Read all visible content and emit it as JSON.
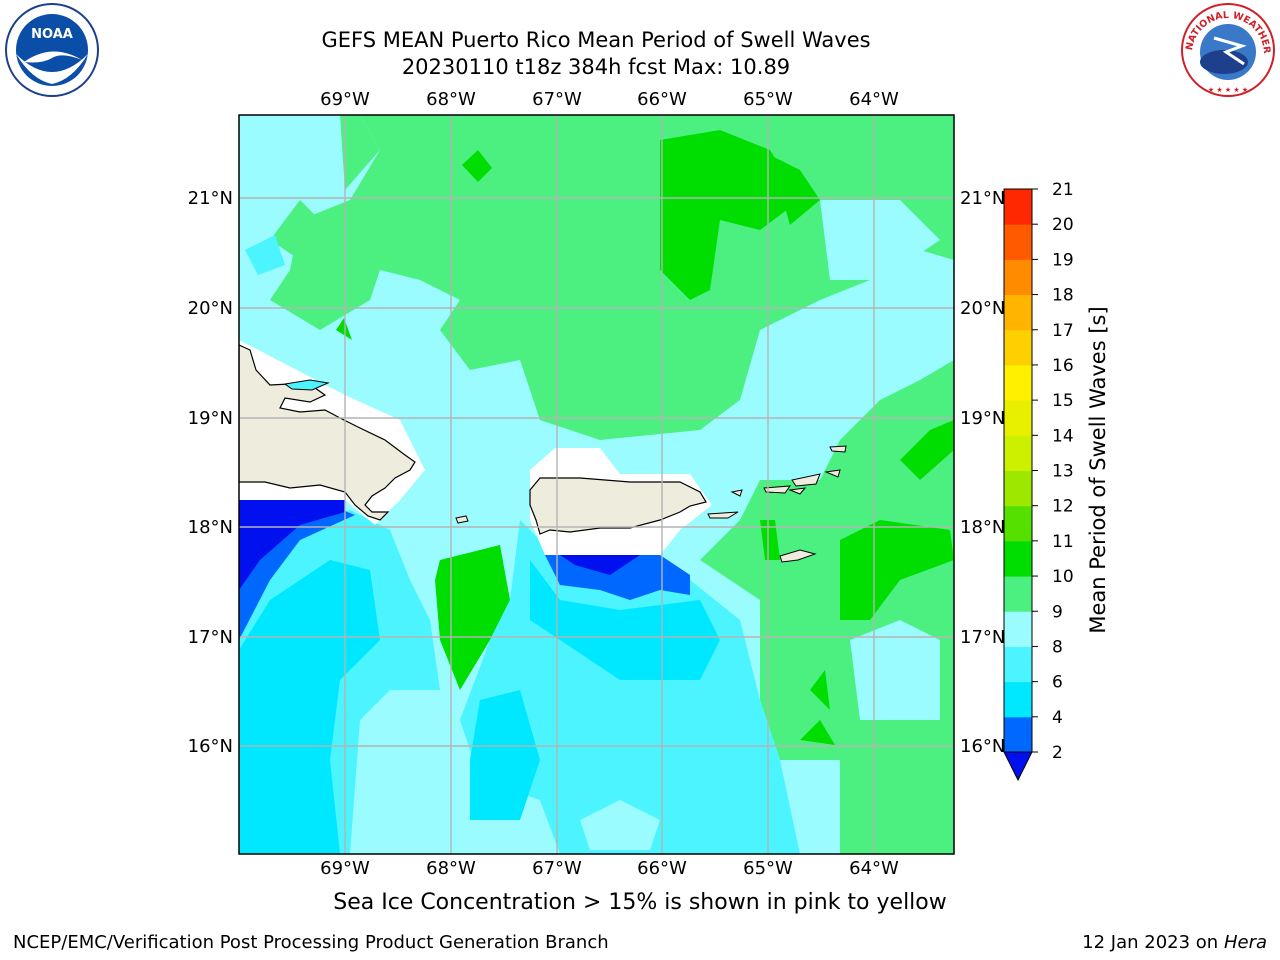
{
  "title": {
    "line1": "GEFS MEAN Puerto Rico Mean Period of Swell Waves",
    "line2": "20230110 t18z 384h fcst   Max: 10.89"
  },
  "map": {
    "lon_labels": [
      "69°W",
      "68°W",
      "67°W",
      "66°W",
      "65°W",
      "64°W"
    ],
    "lat_labels": [
      "21°N",
      "20°N",
      "19°N",
      "18°N",
      "17°N",
      "16°N"
    ]
  },
  "colorbar": {
    "title": "Mean Period of Swell Waves [s]",
    "levels": [
      2,
      4,
      6,
      8,
      9,
      10,
      11,
      12,
      13,
      14,
      15,
      16,
      17,
      18,
      19,
      20,
      21
    ],
    "tick_labels": [
      "2",
      "4",
      "6",
      "8",
      "9",
      "10",
      "11",
      "12",
      "13",
      "14",
      "15",
      "16",
      "17",
      "18",
      "19",
      "20",
      "21"
    ],
    "colors": [
      "#0068ff",
      "#00e8ff",
      "#4cf4ff",
      "#9afcff",
      "#4cf080",
      "#00dd00",
      "#55e000",
      "#9ee800",
      "#ccf000",
      "#e8f000",
      "#fff000",
      "#ffd000",
      "#ffb400",
      "#ff8c00",
      "#ff5a00",
      "#ff2800"
    ],
    "under_color": "#0010ee"
  },
  "caption": "Sea Ice Concentration > 15% is shown in pink to yellow",
  "footer": {
    "left": "NCEP/EMC/Verification Post Processing Product Generation Branch",
    "right_prefix": "12 Jan 2023 on ",
    "right_host": "Hera"
  },
  "logos": {
    "noaa": "NOAA",
    "nws": "NATIONAL WEATHER SERVICE"
  },
  "colors": {
    "land": "#eeecdc",
    "ocean_dark_blue": "#0010ee",
    "swell_blue": "#0068ff",
    "swell_cyan": "#00e8ff",
    "swell_light_cyan": "#4cf4ff",
    "swell_pale_cyan": "#9afcff",
    "swell_light_green": "#4cf080",
    "swell_green": "#00dd00"
  }
}
